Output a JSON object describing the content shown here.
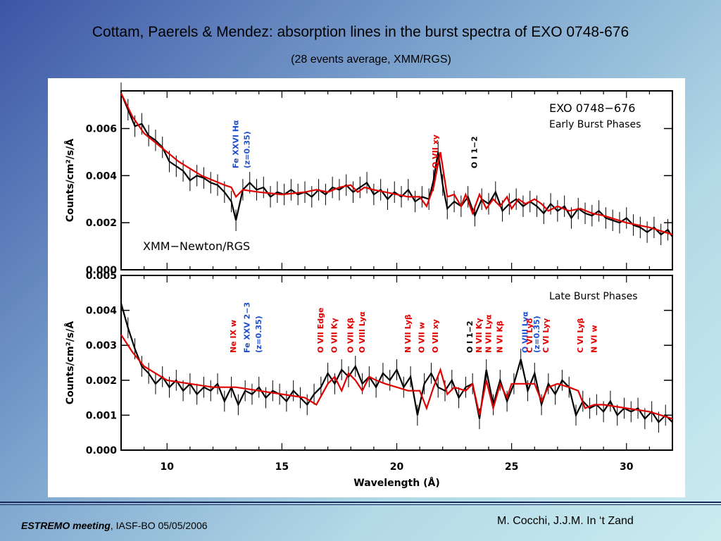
{
  "slide": {
    "title": "Cottam, Paerels & Mendez: absorption lines in the burst spectra of EXO 0748-676",
    "subtitle": "(28 events average, XMM/RGS)",
    "footer_left_bold": "ESTREMO meeting",
    "footer_left_rest": ", IASF-BO 05/05/2006",
    "footer_right": "M. Cocchi, J.J.M. In ‘t Zand"
  },
  "chart_data": [
    {
      "type": "line",
      "title": "EXO 0748−676",
      "subtitle": "Early Burst Phases",
      "instrument_label": "XMM−Newton/RGS",
      "xlabel": "Wavelength (Å)",
      "ylabel": "Counts/cm²/s/Å",
      "xlim": [
        8,
        32
      ],
      "ylim": [
        0,
        0.0076
      ],
      "yticks": [
        0.0,
        0.002,
        0.004,
        0.006
      ],
      "ytick_labels": [
        "0.000",
        "0.002",
        "0.004",
        "0.006"
      ],
      "xticks": [
        10,
        15,
        20,
        25,
        30
      ],
      "series": [
        {
          "name": "data",
          "color": "#000000",
          "x": [
            8.0,
            8.3,
            8.6,
            8.9,
            9.2,
            9.5,
            9.8,
            10.1,
            10.4,
            10.7,
            11.0,
            11.3,
            11.6,
            11.9,
            12.2,
            12.5,
            12.8,
            13.0,
            13.3,
            13.6,
            13.9,
            14.2,
            14.5,
            14.8,
            15.1,
            15.4,
            15.7,
            16.0,
            16.3,
            16.6,
            16.9,
            17.2,
            17.5,
            17.8,
            18.1,
            18.4,
            18.7,
            19.0,
            19.3,
            19.6,
            19.9,
            20.2,
            20.5,
            20.8,
            21.1,
            21.4,
            21.6,
            21.8,
            22.0,
            22.2,
            22.5,
            22.8,
            23.1,
            23.4,
            23.7,
            24.0,
            24.3,
            24.6,
            24.9,
            25.2,
            25.5,
            25.8,
            26.1,
            26.4,
            26.7,
            27.0,
            27.3,
            27.6,
            27.9,
            28.2,
            28.5,
            28.8,
            29.1,
            29.4,
            29.7,
            30.0,
            30.3,
            30.6,
            30.9,
            31.2,
            31.5,
            31.8,
            32.0
          ],
          "y": [
            0.0075,
            0.0068,
            0.0061,
            0.0062,
            0.0057,
            0.0055,
            0.0052,
            0.0046,
            0.0044,
            0.0042,
            0.0038,
            0.004,
            0.0039,
            0.0037,
            0.0036,
            0.0033,
            0.0029,
            0.0021,
            0.0034,
            0.0037,
            0.0034,
            0.0035,
            0.0031,
            0.0033,
            0.0032,
            0.0034,
            0.0032,
            0.0033,
            0.0031,
            0.0034,
            0.0032,
            0.0035,
            0.0034,
            0.0036,
            0.0033,
            0.0035,
            0.0037,
            0.0032,
            0.0034,
            0.003,
            0.0033,
            0.0031,
            0.0034,
            0.0029,
            0.0031,
            0.003,
            0.0038,
            0.005,
            0.0036,
            0.0026,
            0.0029,
            0.0027,
            0.0031,
            0.0023,
            0.003,
            0.0028,
            0.0033,
            0.0025,
            0.0028,
            0.003,
            0.0027,
            0.0029,
            0.0027,
            0.0024,
            0.0028,
            0.0025,
            0.0027,
            0.0022,
            0.0026,
            0.0024,
            0.0023,
            0.0025,
            0.0022,
            0.0021,
            0.002,
            0.0022,
            0.0019,
            0.0018,
            0.0016,
            0.0018,
            0.0015,
            0.0017,
            0.0014
          ]
        },
        {
          "name": "model",
          "color": "#e00000",
          "x": [
            8.0,
            8.5,
            9.0,
            9.5,
            10.0,
            10.5,
            11.0,
            11.5,
            12.0,
            12.5,
            12.8,
            13.0,
            13.3,
            14.0,
            15.0,
            16.0,
            16.5,
            17.0,
            17.5,
            18.0,
            18.3,
            18.6,
            19.0,
            19.5,
            20.0,
            20.5,
            21.0,
            21.3,
            21.6,
            21.9,
            22.2,
            22.5,
            22.8,
            23.0,
            23.3,
            23.6,
            23.9,
            24.2,
            24.5,
            24.8,
            25.0,
            25.3,
            25.6,
            25.8,
            26.0,
            26.3,
            26.6,
            27.0,
            27.5,
            28.0,
            28.5,
            29.0,
            30.0,
            31.0,
            32.0
          ],
          "y": [
            0.0075,
            0.0065,
            0.0058,
            0.0054,
            0.005,
            0.0046,
            0.0043,
            0.004,
            0.0038,
            0.0036,
            0.0035,
            0.0031,
            0.0034,
            0.0033,
            0.0032,
            0.0033,
            0.0034,
            0.0033,
            0.0035,
            0.0036,
            0.0033,
            0.0035,
            0.0034,
            0.0033,
            0.0032,
            0.0031,
            0.0031,
            0.0027,
            0.0035,
            0.005,
            0.0031,
            0.0032,
            0.0027,
            0.0032,
            0.0024,
            0.0032,
            0.0026,
            0.003,
            0.0027,
            0.0031,
            0.0026,
            0.003,
            0.0028,
            0.0029,
            0.003,
            0.0028,
            0.0025,
            0.0027,
            0.0025,
            0.0026,
            0.0024,
            0.0023,
            0.002,
            0.0018,
            0.0015
          ]
        }
      ],
      "annotations": [
        {
          "text": "Fe XXVI Hα",
          "x": 13.1,
          "color": "#1f4fd1"
        },
        {
          "text": "(z=0.35)",
          "x": 13.6,
          "color": "#1f4fd1"
        },
        {
          "text": "O VII xy",
          "x": 21.8,
          "color": "#e00000"
        },
        {
          "text": "O I 1−2",
          "x": 23.5,
          "color": "#000000"
        }
      ]
    },
    {
      "type": "line",
      "title": "",
      "subtitle": "Late Burst Phases",
      "xlabel": "Wavelength (Å)",
      "ylabel": "Counts/cm²/s/Å",
      "xlim": [
        8,
        32
      ],
      "ylim": [
        0,
        0.005
      ],
      "yticks": [
        0.0,
        0.001,
        0.002,
        0.003,
        0.004,
        0.005
      ],
      "ytick_labels": [
        "0.000",
        "0.001",
        "0.002",
        "0.003",
        "0.004",
        "0.005"
      ],
      "xticks": [
        10,
        15,
        20,
        25,
        30
      ],
      "series": [
        {
          "name": "data",
          "color": "#000000",
          "x": [
            8.0,
            8.3,
            8.6,
            8.9,
            9.2,
            9.5,
            9.8,
            10.1,
            10.4,
            10.7,
            11.0,
            11.3,
            11.6,
            11.9,
            12.2,
            12.5,
            12.8,
            13.1,
            13.4,
            13.7,
            14.0,
            14.3,
            14.6,
            14.9,
            15.2,
            15.5,
            15.8,
            16.1,
            16.4,
            16.7,
            17.0,
            17.3,
            17.6,
            17.9,
            18.2,
            18.5,
            18.8,
            19.1,
            19.4,
            19.7,
            20.0,
            20.3,
            20.6,
            20.9,
            21.2,
            21.5,
            21.8,
            22.1,
            22.4,
            22.7,
            23.0,
            23.3,
            23.6,
            23.9,
            24.2,
            24.5,
            24.8,
            25.1,
            25.4,
            25.7,
            26.0,
            26.3,
            26.6,
            26.9,
            27.2,
            27.5,
            27.8,
            28.1,
            28.4,
            28.7,
            29.0,
            29.3,
            29.6,
            29.9,
            30.2,
            30.5,
            30.8,
            31.1,
            31.4,
            31.7,
            32.0
          ],
          "y": [
            0.0042,
            0.0035,
            0.0029,
            0.0024,
            0.0022,
            0.0019,
            0.0021,
            0.0018,
            0.002,
            0.0017,
            0.0019,
            0.0016,
            0.0018,
            0.0017,
            0.0019,
            0.0014,
            0.0018,
            0.0013,
            0.0017,
            0.0016,
            0.0018,
            0.0015,
            0.0017,
            0.0016,
            0.0014,
            0.0017,
            0.0015,
            0.0013,
            0.0016,
            0.0018,
            0.0022,
            0.0019,
            0.0023,
            0.0021,
            0.0024,
            0.0019,
            0.0021,
            0.0018,
            0.0022,
            0.002,
            0.0023,
            0.0018,
            0.0021,
            0.001,
            0.0019,
            0.0022,
            0.0018,
            0.0017,
            0.002,
            0.0015,
            0.0018,
            0.0019,
            0.0009,
            0.0023,
            0.0013,
            0.002,
            0.0014,
            0.0019,
            0.0026,
            0.0017,
            0.0022,
            0.0013,
            0.0019,
            0.0016,
            0.002,
            0.0018,
            0.001,
            0.0014,
            0.0012,
            0.0013,
            0.0011,
            0.0014,
            0.001,
            0.0012,
            0.0011,
            0.0012,
            0.0009,
            0.0011,
            0.0008,
            0.001,
            0.0008
          ]
        },
        {
          "name": "model",
          "color": "#e00000",
          "x": [
            8.0,
            8.5,
            9.0,
            9.5,
            10.0,
            11.0,
            12.0,
            13.0,
            14.0,
            15.0,
            16.0,
            16.5,
            17.0,
            17.3,
            17.6,
            17.9,
            18.2,
            18.5,
            18.8,
            19.1,
            19.5,
            20.0,
            20.5,
            21.0,
            21.3,
            21.6,
            21.9,
            22.2,
            22.5,
            23.0,
            23.3,
            23.6,
            23.9,
            24.2,
            24.5,
            24.8,
            25.0,
            25.5,
            26.0,
            26.3,
            26.6,
            27.0,
            27.5,
            27.9,
            28.2,
            28.6,
            29.0,
            30.0,
            31.0,
            32.0
          ],
          "y": [
            0.0033,
            0.0028,
            0.0024,
            0.0022,
            0.002,
            0.0019,
            0.0018,
            0.0018,
            0.0017,
            0.0016,
            0.0015,
            0.0013,
            0.0019,
            0.0021,
            0.0017,
            0.0022,
            0.002,
            0.0017,
            0.0021,
            0.002,
            0.0019,
            0.0018,
            0.0017,
            0.0017,
            0.0012,
            0.0018,
            0.0023,
            0.0016,
            0.0018,
            0.0017,
            0.0019,
            0.001,
            0.002,
            0.0012,
            0.0019,
            0.0015,
            0.0019,
            0.0019,
            0.0019,
            0.0014,
            0.0018,
            0.0019,
            0.0018,
            0.0017,
            0.0012,
            0.0013,
            0.0013,
            0.0012,
            0.0011,
            0.0009
          ]
        }
      ],
      "annotations": [
        {
          "text": "Ne IX w",
          "x": 13.0,
          "color": "#e00000"
        },
        {
          "text": "Fe XXV 2−3",
          "x": 13.6,
          "color": "#1f4fd1"
        },
        {
          "text": "(z=0.35)",
          "x": 14.1,
          "color": "#1f4fd1"
        },
        {
          "text": "O VII Edge",
          "x": 16.8,
          "color": "#e00000"
        },
        {
          "text": "O VII Kγ",
          "x": 17.4,
          "color": "#e00000"
        },
        {
          "text": "O VII Kβ",
          "x": 18.1,
          "color": "#e00000"
        },
        {
          "text": "O VIII Lyα",
          "x": 18.6,
          "color": "#e00000"
        },
        {
          "text": "N VII Lyβ",
          "x": 20.6,
          "color": "#e00000"
        },
        {
          "text": "O VII w",
          "x": 21.2,
          "color": "#e00000"
        },
        {
          "text": "O VII xy",
          "x": 21.8,
          "color": "#e00000"
        },
        {
          "text": "N VII Kγ",
          "x": 23.7,
          "color": "#e00000"
        },
        {
          "text": "O I 1−2",
          "x": 23.3,
          "color": "#000000"
        },
        {
          "text": "N VII Lyα",
          "x": 24.1,
          "color": "#e00000"
        },
        {
          "text": "N VI Kβ",
          "x": 24.6,
          "color": "#e00000"
        },
        {
          "text": "O VIII Lyα",
          "x": 25.7,
          "color": "#1f4fd1"
        },
        {
          "text": "(z=0.35)",
          "x": 26.2,
          "color": "#1f4fd1"
        },
        {
          "text": "C VI Lyδ",
          "x": 25.9,
          "color": "#e00000"
        },
        {
          "text": "C VI Lyγ",
          "x": 26.6,
          "color": "#e00000"
        },
        {
          "text": "C VI Lyβ",
          "x": 28.1,
          "color": "#e00000"
        },
        {
          "text": "N VI w",
          "x": 28.7,
          "color": "#e00000"
        }
      ]
    }
  ]
}
